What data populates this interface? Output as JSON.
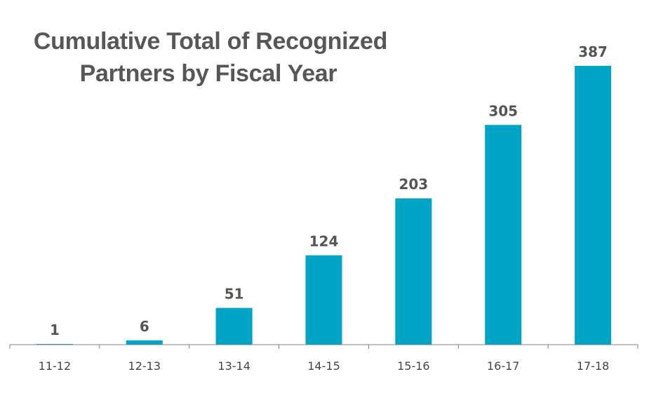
{
  "chart_data": {
    "type": "bar",
    "title_lines": [
      "Cumulative Total of Recognized",
      "Partners by Fiscal Year"
    ],
    "categories": [
      "11-12",
      "12-13",
      "13-14",
      "14-15",
      "15-16",
      "16-17",
      "17-18"
    ],
    "values": [
      1,
      6,
      51,
      124,
      203,
      305,
      387
    ],
    "data_labels": [
      "1",
      "6",
      "51",
      "124",
      "203",
      "305",
      "387"
    ],
    "xlabel": "",
    "ylabel": "",
    "ylim": [
      0,
      387
    ],
    "grid": false,
    "legend": "none",
    "colors": {
      "bar": "#00A5C6",
      "label": "#555555",
      "axis": "#808080",
      "title": "#575757"
    }
  }
}
